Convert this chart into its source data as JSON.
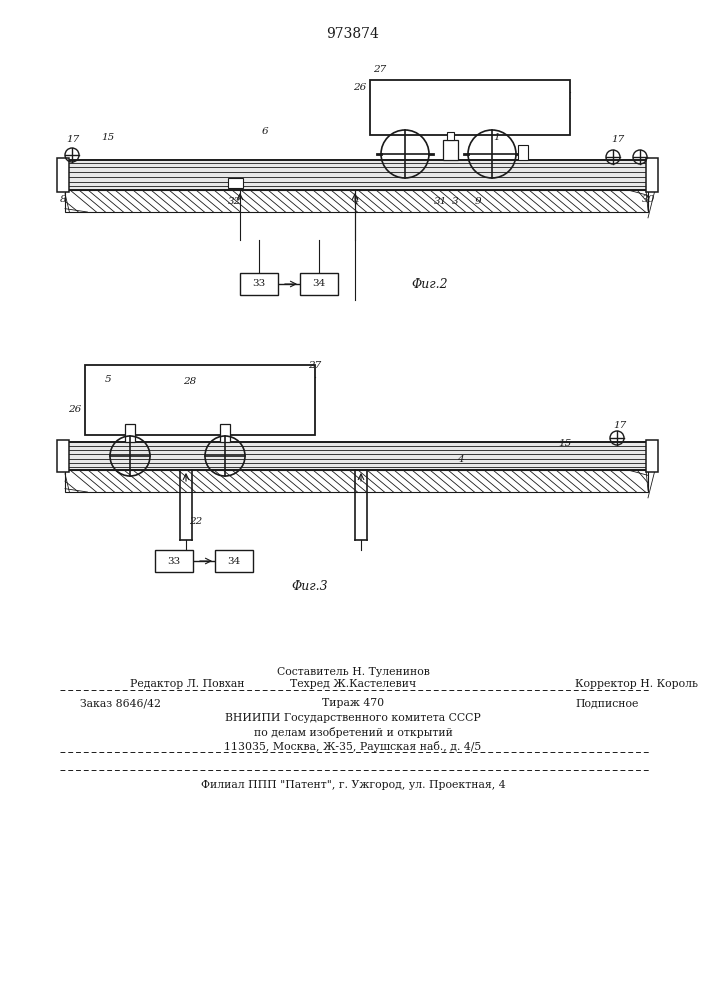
{
  "title": "973874",
  "title_fontsize": 10,
  "fig_width": 7.07,
  "fig_height": 10.0,
  "bg_color": "#ffffff",
  "line_color": "#1a1a1a",
  "fig2_label": "Φиг.2",
  "fig3_label": "Φиг.3",
  "footer": {
    "line1": "Составитель Н. Туленинов",
    "line2_l": "Редактор Л. Повхан",
    "line2_m": "Техред Ж.Кастелевич",
    "line2_r": "Корректор Н. Король",
    "line3_l": "Заказ 8646/42",
    "line3_m": "Тираж 470",
    "line3_r": "Подписное",
    "line4": "ВНИИПИ Государственного комитета СССР",
    "line5": "по делам изобретений и открытий",
    "line6": "113035, Москва, Ж-35, Раушская наб., д. 4/5",
    "line7": "Филиал ППП \"Патент\", г. Ужгород, ул. Проектная, 4"
  }
}
